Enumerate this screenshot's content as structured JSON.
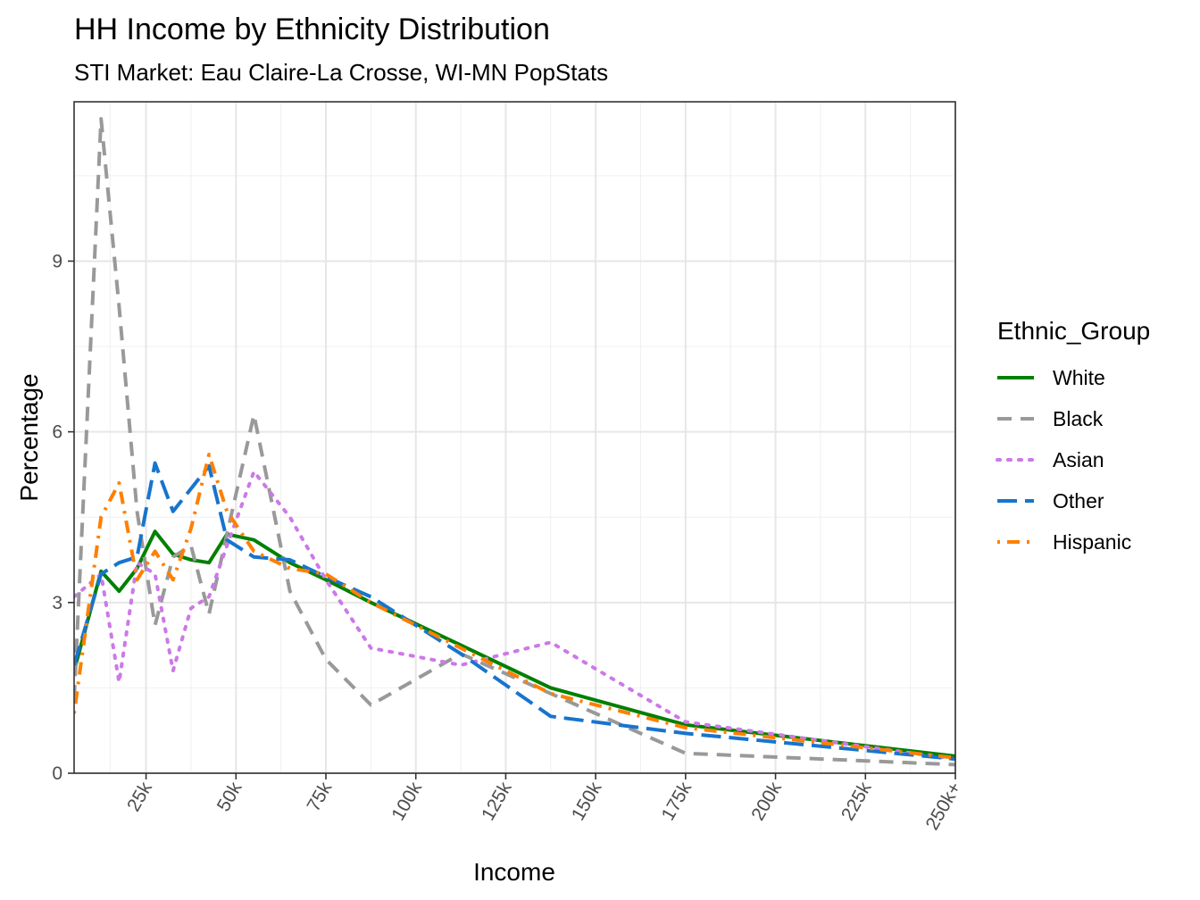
{
  "chart_data": {
    "type": "line",
    "title": "HH Income by Ethnicity Distribution",
    "subtitle": "STI Market: Eau Claire-La Crosse, WI-MN PopStats",
    "xlabel": "Income",
    "ylabel": "Percentage",
    "xlim": [
      5,
      250
    ],
    "ylim": [
      0,
      11.8
    ],
    "x_ticks": [
      25,
      50,
      75,
      100,
      125,
      150,
      175,
      200,
      225,
      250
    ],
    "x_tick_labels": [
      "25k",
      "50k",
      "75k",
      "100k",
      "125k",
      "150k",
      "175k",
      "200k",
      "225k",
      "250k+"
    ],
    "y_ticks": [
      0,
      3,
      6,
      9
    ],
    "y_tick_labels": [
      "0",
      "3",
      "6",
      "9"
    ],
    "grid": true,
    "legend": {
      "title": "Ethnic_Group",
      "position": "right"
    },
    "x": [
      5,
      12.5,
      17.5,
      22.5,
      27.5,
      32.5,
      37.5,
      42.5,
      47.5,
      55,
      65,
      75,
      87.5,
      112.5,
      137.5,
      175,
      250
    ],
    "series": [
      {
        "name": "White",
        "color": "#008000",
        "dash": "solid",
        "values": [
          1.8,
          3.55,
          3.2,
          3.6,
          4.25,
          3.85,
          3.75,
          3.7,
          4.2,
          4.1,
          3.7,
          3.4,
          3.0,
          2.25,
          1.5,
          0.85,
          0.3
        ]
      },
      {
        "name": "Black",
        "color": "#999999",
        "dash": "dashed",
        "values": [
          1.3,
          11.5,
          8.2,
          4.6,
          2.6,
          3.8,
          4.0,
          2.8,
          4.2,
          6.3,
          3.2,
          2.0,
          1.2,
          2.1,
          1.4,
          0.35,
          0.15
        ]
      },
      {
        "name": "Asian",
        "color": "#CC79E8",
        "dash": "dotted",
        "values": [
          3.1,
          3.5,
          1.6,
          3.7,
          3.5,
          1.8,
          2.9,
          3.1,
          4.0,
          5.3,
          4.5,
          3.4,
          2.2,
          1.9,
          2.3,
          0.9,
          0.25
        ]
      },
      {
        "name": "Other",
        "color": "#1874CD",
        "dash": "longdash",
        "values": [
          1.9,
          3.5,
          3.7,
          3.8,
          5.45,
          4.6,
          5.0,
          5.4,
          4.1,
          3.8,
          3.75,
          3.45,
          3.1,
          2.1,
          1.0,
          0.7,
          0.25
        ]
      },
      {
        "name": "Hispanic",
        "color": "#FF7F00",
        "dash": "dotdash",
        "values": [
          1.05,
          4.5,
          5.1,
          3.4,
          3.9,
          3.4,
          4.3,
          5.6,
          4.6,
          3.9,
          3.6,
          3.5,
          3.0,
          2.2,
          1.4,
          0.8,
          0.27
        ]
      }
    ]
  }
}
